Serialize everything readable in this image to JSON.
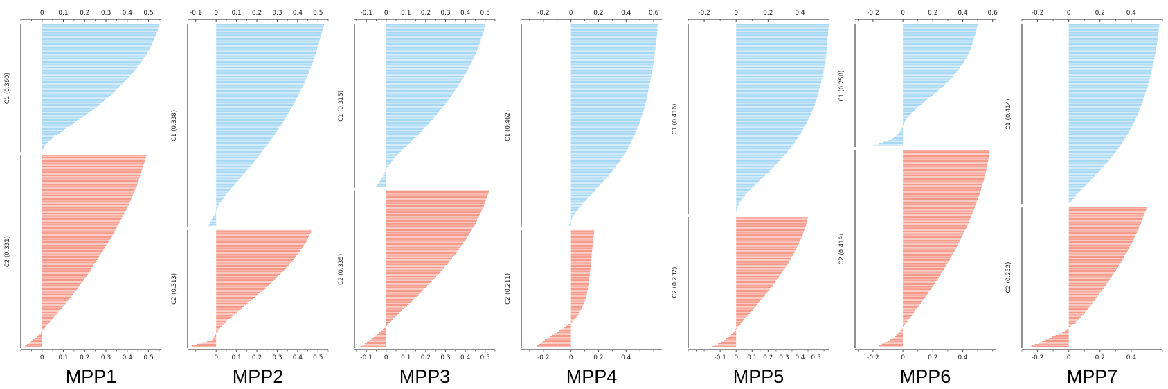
{
  "figure": {
    "name": "silhouette-plots-by-sample",
    "background": "#ffffff"
  },
  "chart_data": {
    "type": "bar",
    "subtype": "horizontal-silhouette-plot",
    "title": "",
    "xlabel": "",
    "ylabel": "",
    "legend_position": "none",
    "grid": false,
    "colors": {
      "cluster1": "#a8d8f4",
      "cluster2": "#f49a8b",
      "axis": "#4a4a4a",
      "left_axis": "#555555"
    },
    "panels": [
      {
        "title": "MPP1",
        "axis_range": {
          "min": -0.1,
          "max": 0.56
        },
        "top_ticks": [
          0,
          0.1,
          0.2,
          0.3,
          0.4,
          0.5
        ],
        "bottom_ticks": [
          0,
          0.1,
          0.2,
          0.3,
          0.4,
          0.5
        ],
        "clusters": [
          {
            "id": "C1",
            "label": "C1 (0.360)",
            "avg_silhouette": 0.36,
            "fraction": 0.4,
            "color": "cluster1",
            "profile": [
              0.55,
              0.54,
              0.525,
              0.51,
              0.49,
              0.465,
              0.44,
              0.41,
              0.375,
              0.34,
              0.3,
              0.26,
              0.21,
              0.16,
              0.11,
              0.06,
              0.02,
              0.0
            ]
          },
          {
            "id": "C2",
            "label": "C2 (0.331)",
            "avg_silhouette": 0.331,
            "fraction": 0.6,
            "color": "cluster2",
            "profile": [
              0.49,
              0.475,
              0.46,
              0.445,
              0.425,
              0.405,
              0.38,
              0.355,
              0.33,
              0.3,
              0.27,
              0.24,
              0.21,
              0.175,
              0.14,
              0.1,
              0.06,
              0.02,
              -0.02,
              -0.08
            ]
          }
        ]
      },
      {
        "title": "MPP2",
        "axis_range": {
          "min": -0.14,
          "max": 0.55
        },
        "top_ticks": [
          -0.1,
          0,
          0.1,
          0.2,
          0.3,
          0.4,
          0.5
        ],
        "bottom_ticks": [
          0,
          0.1,
          0.2,
          0.3,
          0.4,
          0.5
        ],
        "clusters": [
          {
            "id": "C1",
            "label": "C1 (0.338)",
            "avg_silhouette": 0.338,
            "fraction": 0.63,
            "color": "cluster1",
            "profile": [
              0.53,
              0.515,
              0.5,
              0.485,
              0.465,
              0.445,
              0.42,
              0.395,
              0.365,
              0.335,
              0.3,
              0.265,
              0.225,
              0.185,
              0.14,
              0.095,
              0.05,
              0.015,
              -0.01,
              -0.04
            ]
          },
          {
            "id": "C2",
            "label": "C2 (0.313)",
            "avg_silhouette": 0.313,
            "fraction": 0.37,
            "color": "cluster2",
            "profile": [
              0.47,
              0.455,
              0.44,
              0.42,
              0.4,
              0.375,
              0.35,
              0.32,
              0.29,
              0.26,
              0.225,
              0.19,
              0.155,
              0.12,
              0.085,
              0.05,
              0.02,
              0.0,
              -0.02,
              -0.12
            ]
          }
        ]
      },
      {
        "title": "MPP3",
        "axis_range": {
          "min": -0.16,
          "max": 0.55
        },
        "top_ticks": [
          -0.1,
          0,
          0.1,
          0.2,
          0.3,
          0.4,
          0.5
        ],
        "bottom_ticks": [
          -0.1,
          0,
          0.1,
          0.2,
          0.3,
          0.4,
          0.5
        ],
        "clusters": [
          {
            "id": "C1",
            "label": "C1 (0.315)",
            "avg_silhouette": 0.315,
            "fraction": 0.51,
            "color": "cluster1",
            "profile": [
              0.5,
              0.49,
              0.475,
              0.46,
              0.44,
              0.42,
              0.395,
              0.37,
              0.34,
              0.31,
              0.275,
              0.24,
              0.2,
              0.16,
              0.115,
              0.07,
              0.03,
              0.0,
              -0.02,
              -0.05
            ]
          },
          {
            "id": "C2",
            "label": "C2 (0.335)",
            "avg_silhouette": 0.335,
            "fraction": 0.49,
            "color": "cluster2",
            "profile": [
              0.52,
              0.505,
              0.49,
              0.47,
              0.45,
              0.425,
              0.4,
              0.37,
              0.34,
              0.305,
              0.27,
              0.23,
              0.19,
              0.15,
              0.105,
              0.06,
              0.02,
              -0.02,
              -0.07,
              -0.13
            ]
          }
        ]
      },
      {
        "title": "MPP4",
        "axis_range": {
          "min": -0.36,
          "max": 0.66
        },
        "top_ticks": [
          -0.2,
          0,
          0.2,
          0.4,
          0.6
        ],
        "bottom_ticks": [
          -0.2,
          0,
          0.2,
          0.4
        ],
        "clusters": [
          {
            "id": "C1",
            "label": "C1 (0.462)",
            "avg_silhouette": 0.462,
            "fraction": 0.63,
            "color": "cluster1",
            "profile": [
              0.63,
              0.625,
              0.615,
              0.605,
              0.595,
              0.58,
              0.565,
              0.55,
              0.53,
              0.505,
              0.475,
              0.44,
              0.4,
              0.35,
              0.29,
              0.22,
              0.15,
              0.08,
              0.02,
              -0.02
            ]
          },
          {
            "id": "C2",
            "label": "C2 (0.211)",
            "avg_silhouette": 0.211,
            "fraction": 0.37,
            "color": "cluster2",
            "profile": [
              0.17,
              0.165,
              0.16,
              0.155,
              0.15,
              0.147,
              0.143,
              0.138,
              0.133,
              0.127,
              0.12,
              0.11,
              0.095,
              0.075,
              0.05,
              0.01,
              -0.05,
              -0.12,
              -0.19,
              -0.25
            ]
          }
        ]
      },
      {
        "title": "MPP5",
        "axis_range": {
          "min": -0.3,
          "max": 0.58
        },
        "top_ticks": [
          -0.2,
          0,
          0.2,
          0.4
        ],
        "bottom_ticks": [
          -0.1,
          0,
          0.1,
          0.2,
          0.3,
          0.4,
          0.5
        ],
        "clusters": [
          {
            "id": "C1",
            "label": "C1 (0.416)",
            "avg_silhouette": 0.416,
            "fraction": 0.59,
            "color": "cluster1",
            "profile": [
              0.58,
              0.575,
              0.57,
              0.565,
              0.555,
              0.545,
              0.53,
              0.515,
              0.495,
              0.47,
              0.44,
              0.405,
              0.365,
              0.315,
              0.26,
              0.2,
              0.135,
              0.07,
              0.02,
              0.0
            ]
          },
          {
            "id": "C2",
            "label": "C2 (0.232)",
            "avg_silhouette": 0.232,
            "fraction": 0.41,
            "color": "cluster2",
            "profile": [
              0.45,
              0.44,
              0.425,
              0.41,
              0.39,
              0.37,
              0.345,
              0.32,
              0.29,
              0.26,
              0.23,
              0.195,
              0.16,
              0.125,
              0.09,
              0.05,
              0.015,
              -0.02,
              -0.07,
              -0.15
            ]
          }
        ]
      },
      {
        "title": "MPP6",
        "axis_range": {
          "min": -0.32,
          "max": 0.62
        },
        "top_ticks": [
          -0.2,
          0,
          0.2,
          0.4,
          0.6
        ],
        "bottom_ticks": [
          -0.2,
          0,
          0.2,
          0.4
        ],
        "clusters": [
          {
            "id": "C1",
            "label": "C1 (0.258)",
            "avg_silhouette": 0.258,
            "fraction": 0.385,
            "color": "cluster1",
            "profile": [
              0.5,
              0.49,
              0.478,
              0.465,
              0.45,
              0.43,
              0.405,
              0.375,
              0.34,
              0.3,
              0.255,
              0.205,
              0.15,
              0.1,
              0.055,
              0.02,
              0.0,
              -0.02,
              -0.07,
              -0.19
            ]
          },
          {
            "id": "C2",
            "label": "C2 (0.419)",
            "avg_silhouette": 0.419,
            "fraction": 0.615,
            "color": "cluster2",
            "profile": [
              0.58,
              0.572,
              0.562,
              0.55,
              0.535,
              0.518,
              0.5,
              0.48,
              0.458,
              0.435,
              0.41,
              0.383,
              0.355,
              0.325,
              0.293,
              0.26,
              0.225,
              0.188,
              0.15,
              0.11,
              0.07,
              0.03,
              -0.01,
              -0.06,
              -0.16
            ]
          }
        ]
      },
      {
        "title": "MPP7",
        "axis_range": {
          "min": -0.3,
          "max": 0.6
        },
        "top_ticks": [
          -0.2,
          0,
          0.2,
          0.4
        ],
        "bottom_ticks": [
          -0.2,
          0,
          0.2,
          0.4
        ],
        "clusters": [
          {
            "id": "C1",
            "label": "C1 (0.414)",
            "avg_silhouette": 0.414,
            "fraction": 0.56,
            "color": "cluster1",
            "profile": [
              0.58,
              0.573,
              0.565,
              0.555,
              0.543,
              0.53,
              0.515,
              0.497,
              0.477,
              0.455,
              0.43,
              0.4,
              0.365,
              0.325,
              0.28,
              0.23,
              0.175,
              0.115,
              0.055,
              0.01
            ]
          },
          {
            "id": "C2",
            "label": "C2 (0.252)",
            "avg_silhouette": 0.252,
            "fraction": 0.44,
            "color": "cluster2",
            "profile": [
              0.5,
              0.483,
              0.465,
              0.445,
              0.423,
              0.4,
              0.375,
              0.348,
              0.32,
              0.29,
              0.258,
              0.225,
              0.19,
              0.155,
              0.12,
              0.08,
              0.03,
              -0.03,
              -0.13,
              -0.24
            ]
          }
        ]
      }
    ]
  }
}
